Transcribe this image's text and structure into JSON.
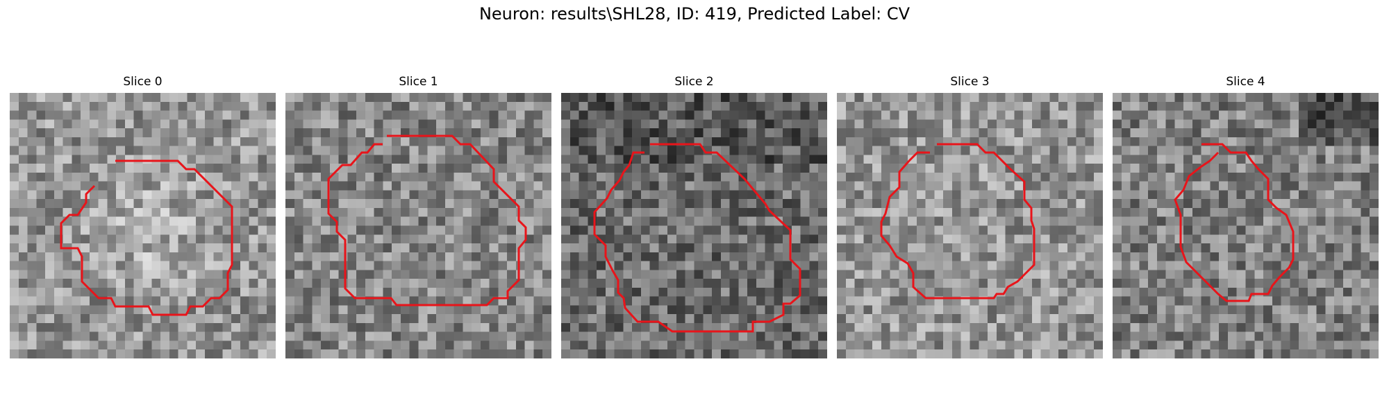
{
  "figure": {
    "title": "Neuron: results\\SHL28, ID: 419, Predicted Label: CV",
    "contour_color": "#e8141a"
  },
  "slices": [
    {
      "title": "Slice 0",
      "image_tone": "grayscale noise, mid-gray, bright center"
    },
    {
      "title": "Slice 1",
      "image_tone": "grayscale noise, mid-gray"
    },
    {
      "title": "Slice 2",
      "image_tone": "grayscale noise, darker"
    },
    {
      "title": "Slice 3",
      "image_tone": "grayscale noise, lighter"
    },
    {
      "title": "Slice 4",
      "image_tone": "grayscale noise, dark top-right"
    }
  ]
}
